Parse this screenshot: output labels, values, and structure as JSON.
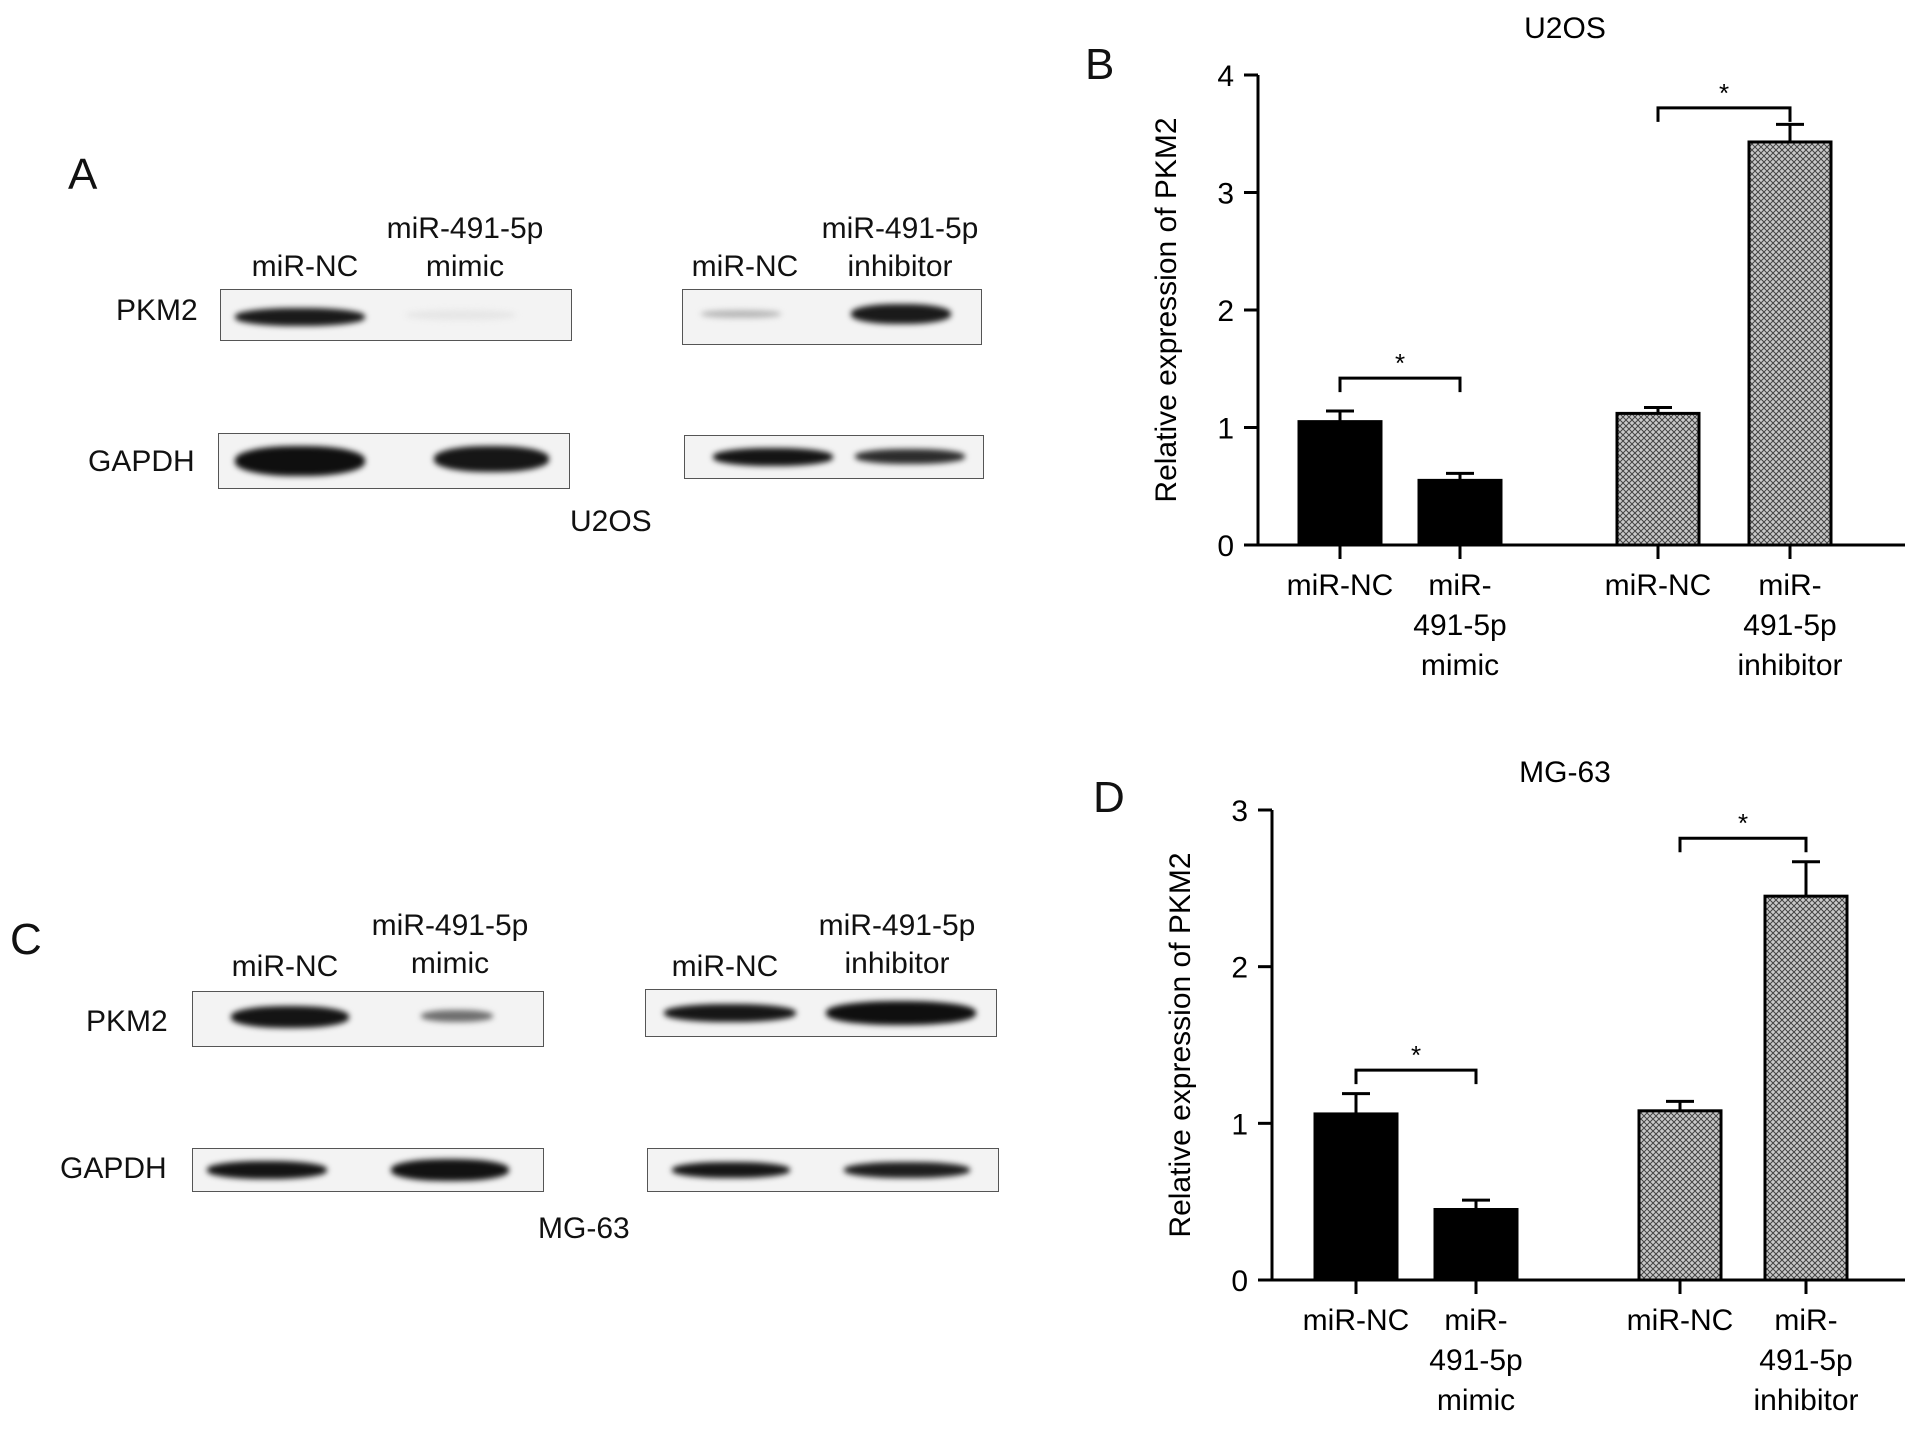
{
  "panels": {
    "A": {
      "letter": "A",
      "cell_line": "U2OS",
      "rows": [
        "PKM2",
        "GAPDH"
      ],
      "mimic_lanes": [
        "miR-NC",
        "miR-491-5p\nmimic"
      ],
      "inhibitor_lanes": [
        "miR-NC",
        "miR-491-5p\ninhibitor"
      ]
    },
    "C": {
      "letter": "C",
      "cell_line": "MG-63",
      "rows": [
        "PKM2",
        "GAPDH"
      ],
      "mimic_lanes": [
        "miR-NC",
        "miR-491-5p\nmimic"
      ],
      "inhibitor_lanes": [
        "miR-NC",
        "miR-491-5p\ninhibitor"
      ]
    }
  },
  "chart_data": [
    {
      "panel": "B",
      "type": "bar",
      "title": "U2OS",
      "ylabel": "Relative expression of PKM2",
      "ylim": [
        0,
        4
      ],
      "yticks": [
        0,
        1,
        2,
        3,
        4
      ],
      "categories": [
        "miR-NC",
        "miR-\n491-5p\nmimic",
        "miR-NC",
        "miR-\n491-5p\ninhibitor"
      ],
      "values": [
        1.05,
        0.55,
        1.12,
        3.43
      ],
      "errors": [
        0.09,
        0.06,
        0.05,
        0.15
      ],
      "fills": [
        "solid",
        "solid",
        "crosshatch",
        "crosshatch"
      ],
      "significance": [
        {
          "from": 0,
          "to": 1,
          "label": "*",
          "y": 1.42
        },
        {
          "from": 2,
          "to": 3,
          "label": "*",
          "y": 3.72
        }
      ]
    },
    {
      "panel": "D",
      "type": "bar",
      "title": "MG-63",
      "ylabel": "Relative expression of PKM2",
      "ylim": [
        0,
        3
      ],
      "yticks": [
        0,
        1,
        2,
        3
      ],
      "categories": [
        "miR-NC",
        "miR-\n491-5p\nmimic",
        "miR-NC",
        "miR-\n491-5p\ninhibitor"
      ],
      "values": [
        1.06,
        0.45,
        1.08,
        2.45
      ],
      "errors": [
        0.13,
        0.06,
        0.06,
        0.22
      ],
      "fills": [
        "solid",
        "solid",
        "crosshatch",
        "crosshatch"
      ],
      "significance": [
        {
          "from": 0,
          "to": 1,
          "label": "*",
          "y": 1.34
        },
        {
          "from": 2,
          "to": 3,
          "label": "*",
          "y": 2.82
        }
      ]
    }
  ],
  "colors": {
    "bar_solid": "#000000",
    "band_dark": "#141414",
    "membrane": "#f3f3f3",
    "axis": "#000000"
  }
}
